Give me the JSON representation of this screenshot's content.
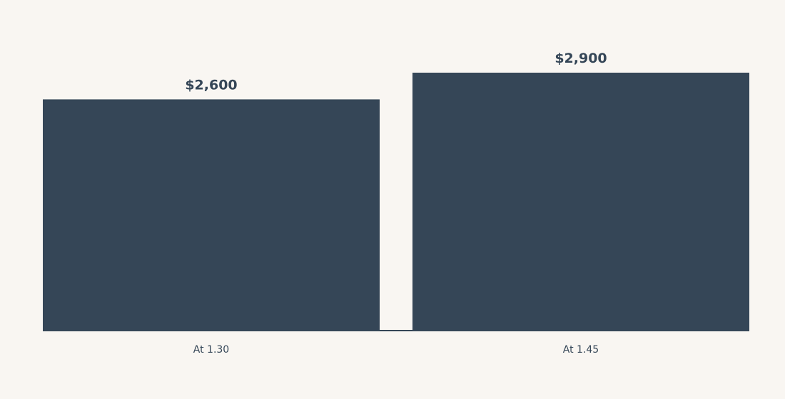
{
  "chart_data": {
    "type": "bar",
    "categories": [
      "At 1.30",
      "At 1.45"
    ],
    "values": [
      2600,
      2900
    ],
    "data_labels": [
      "$2,600",
      "$2,900"
    ],
    "ylim": [
      0,
      2900
    ],
    "grid": false,
    "legend": "none",
    "bar_color": "#354657",
    "background_color": "#f9f6f2"
  }
}
